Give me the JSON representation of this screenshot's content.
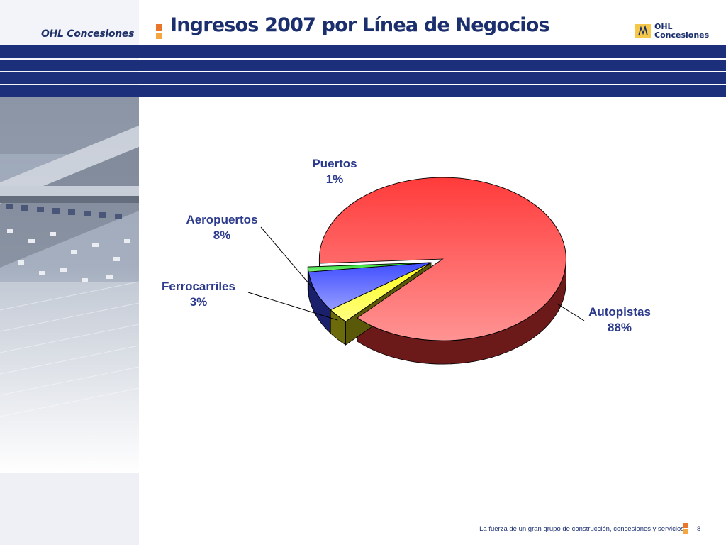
{
  "header": {
    "brand": "OHL Concesiones",
    "title": "Ingresos 2007 por Línea de Negocios",
    "logo_line1": "OHL",
    "logo_line2": "Concesiones"
  },
  "footer": {
    "tagline": "La fuerza de un gran grupo de construcción, concesiones y servicios",
    "page_number": "8"
  },
  "colors": {
    "brand_navy": "#1b2f7a",
    "accent_orange": "#e8752a",
    "accent_light_orange": "#f5a63f"
  },
  "chart_data": {
    "type": "pie",
    "style": "3d exploded",
    "title": "",
    "slices": [
      {
        "label": "Autopistas",
        "pct_label": "88%",
        "value": 88,
        "color": "#ff3b3b"
      },
      {
        "label": "Ferrocarriles",
        "pct_label": "3%",
        "value": 3,
        "color": "#ffff1a"
      },
      {
        "label": "Aeropuertos",
        "pct_label": "8%",
        "value": 8,
        "color": "#3f4dff"
      },
      {
        "label": "Puertos",
        "pct_label": "1%",
        "value": 1,
        "color": "#22dd22"
      }
    ]
  }
}
